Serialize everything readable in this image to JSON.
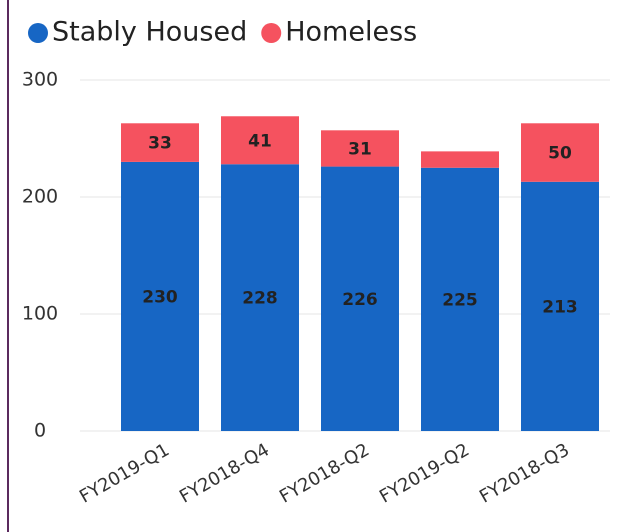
{
  "chart_data": {
    "type": "stacked_bar",
    "categories": [
      "FY2019-Q1",
      "FY2018-Q4",
      "FY2018-Q2",
      "FY2019-Q2",
      "FY2018-Q3"
    ],
    "series": [
      {
        "name": "Stably Housed",
        "color": "#1766c4",
        "values": [
          230,
          228,
          226,
          225,
          213
        ]
      },
      {
        "name": "Homeless",
        "color": "#f5525f",
        "values": [
          33,
          41,
          31,
          14,
          50
        ]
      }
    ],
    "ylim": [
      0,
      300
    ],
    "yticks": [
      0,
      100,
      200,
      300
    ],
    "grid": true,
    "legend": "top-left"
  }
}
